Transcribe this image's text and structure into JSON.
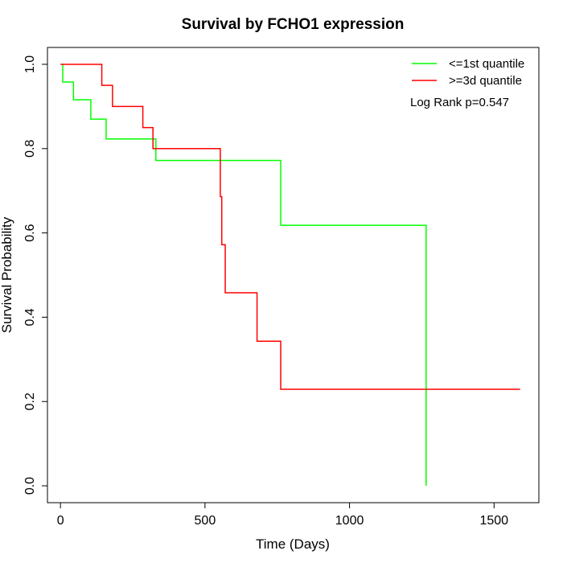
{
  "chart_data": {
    "type": "line",
    "title": "Survival by FCHO1 expression",
    "xlabel": "Time (Days)",
    "ylabel": "Survival Probability",
    "xlim": [
      -45,
      1655
    ],
    "ylim": [
      -0.04,
      1.04
    ],
    "x_ticks": [
      0,
      500,
      1000,
      1500
    ],
    "x_tick_labels": [
      "0",
      "500",
      "1000",
      "1500"
    ],
    "y_ticks": [
      0.0,
      0.2,
      0.4,
      0.6,
      0.8,
      1.0
    ],
    "y_tick_labels": [
      "0.0",
      "0.2",
      "0.4",
      "0.6",
      "0.8",
      "1.0"
    ],
    "grid": false,
    "legend_position": "top-right",
    "annotation": "Log Rank p=0.547",
    "series": [
      {
        "name": "<=1st quantile",
        "color": "#00ff00",
        "step": true,
        "points": [
          [
            5,
            1.0
          ],
          [
            8,
            0.958
          ],
          [
            45,
            0.916
          ],
          [
            105,
            0.87
          ],
          [
            158,
            0.823
          ],
          [
            330,
            0.772
          ],
          [
            762,
            0.618
          ],
          [
            1265,
            0.0
          ]
        ]
      },
      {
        "name": ">=3d quantile",
        "color": "#ff0000",
        "step": true,
        "points": [
          [
            0,
            1.0
          ],
          [
            143,
            0.95
          ],
          [
            180,
            0.9
          ],
          [
            285,
            0.85
          ],
          [
            320,
            0.8
          ],
          [
            553,
            0.686
          ],
          [
            558,
            0.572
          ],
          [
            570,
            0.458
          ],
          [
            680,
            0.343
          ],
          [
            762,
            0.229
          ],
          [
            1590,
            0.229
          ]
        ]
      }
    ]
  }
}
